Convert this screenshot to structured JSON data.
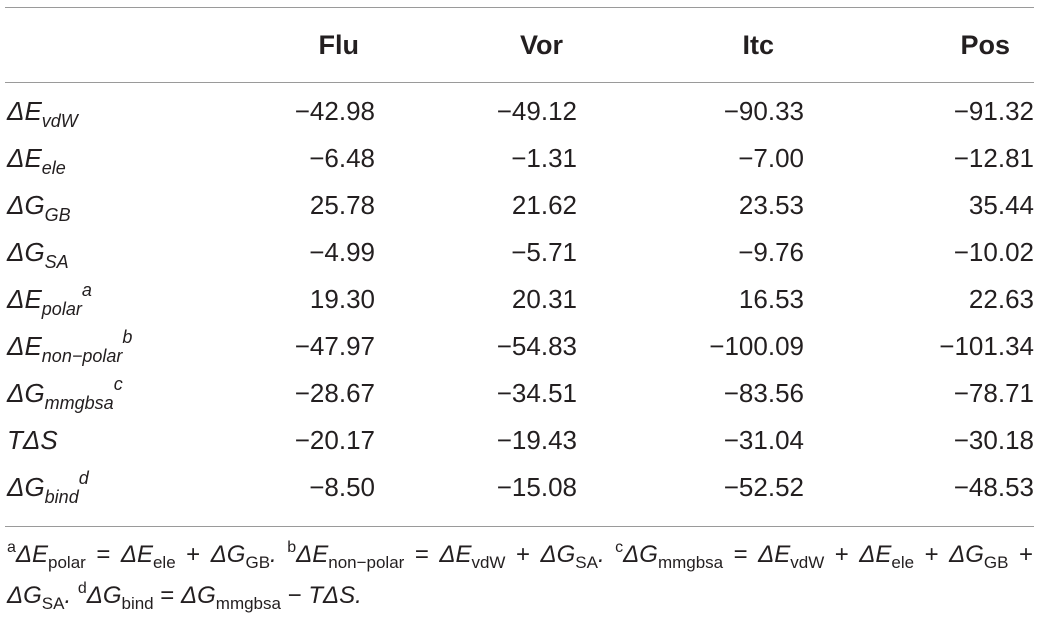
{
  "table": {
    "headers": [
      "",
      "Flu",
      "Vor",
      "Itc",
      "Pos"
    ],
    "rows": [
      {
        "symbol": "ΔE",
        "sub": "vdW",
        "sup": "",
        "values": [
          "−42.98",
          "−49.12",
          "−90.33",
          "−91.32"
        ]
      },
      {
        "symbol": "ΔE",
        "sub": "ele",
        "sup": "",
        "values": [
          "−6.48",
          "−1.31",
          "−7.00",
          "−12.81"
        ]
      },
      {
        "symbol": "ΔG",
        "sub": "GB",
        "sup": "",
        "values": [
          "25.78",
          "21.62",
          "23.53",
          "35.44"
        ]
      },
      {
        "symbol": "ΔG",
        "sub": "SA",
        "sup": "",
        "values": [
          "−4.99",
          "−5.71",
          "−9.76",
          "−10.02"
        ]
      },
      {
        "symbol": "ΔE",
        "sub": "polar",
        "sup": "a",
        "values": [
          "19.30",
          "20.31",
          "16.53",
          "22.63"
        ]
      },
      {
        "symbol": "ΔE",
        "sub": "non−polar",
        "sup": "b",
        "values": [
          "−47.97",
          "−54.83",
          "−100.09",
          "−101.34"
        ]
      },
      {
        "symbol": "ΔG",
        "sub": "mmgbsa",
        "sup": "c",
        "values": [
          "−28.67",
          "−34.51",
          "−83.56",
          "−78.71"
        ]
      },
      {
        "symbol": "TΔS",
        "sub": "",
        "sup": "",
        "values": [
          "−20.17",
          "−19.43",
          "−31.04",
          "−30.18"
        ]
      },
      {
        "symbol": "ΔG",
        "sub": "bind",
        "sup": "d",
        "values": [
          "−8.50",
          "−15.08",
          "−52.52",
          "−48.53"
        ]
      }
    ]
  },
  "footnotes": {
    "a": {
      "mark": "a",
      "lhs": "ΔE",
      "lhs_sub": "polar",
      "eq": " = ",
      "t1": "ΔE",
      "t1_sub": "ele",
      "op": " + ",
      "t2": "ΔG",
      "t2_sub": "GB",
      "end": "."
    },
    "b": {
      "mark": "b",
      "lhs": "ΔE",
      "lhs_sub": "non−polar",
      "eq": " = ",
      "t1": "ΔE",
      "t1_sub": "vdW",
      "op": " + ",
      "t2": "ΔG",
      "t2_sub": "SA",
      "end": "."
    },
    "c": {
      "mark": "c",
      "lhs": "ΔG",
      "lhs_sub": "mmgbsa",
      "eq": " = ",
      "t1": "ΔE",
      "t1_sub": "vdW",
      "op1": " + ",
      "t2": "ΔE",
      "t2_sub": "ele",
      "op2": " + ",
      "t3": "ΔG",
      "t3_sub": "GB",
      "op3": " + ",
      "t4": "ΔG",
      "t4_sub": "SA",
      "end": "."
    },
    "d": {
      "mark": "d",
      "lhs": "ΔG",
      "lhs_sub": "bind",
      "eq": " = ",
      "t1": "ΔG",
      "t1_sub": "mmgbsa",
      "op": " − ",
      "t2": "TΔS",
      "end": "."
    }
  }
}
